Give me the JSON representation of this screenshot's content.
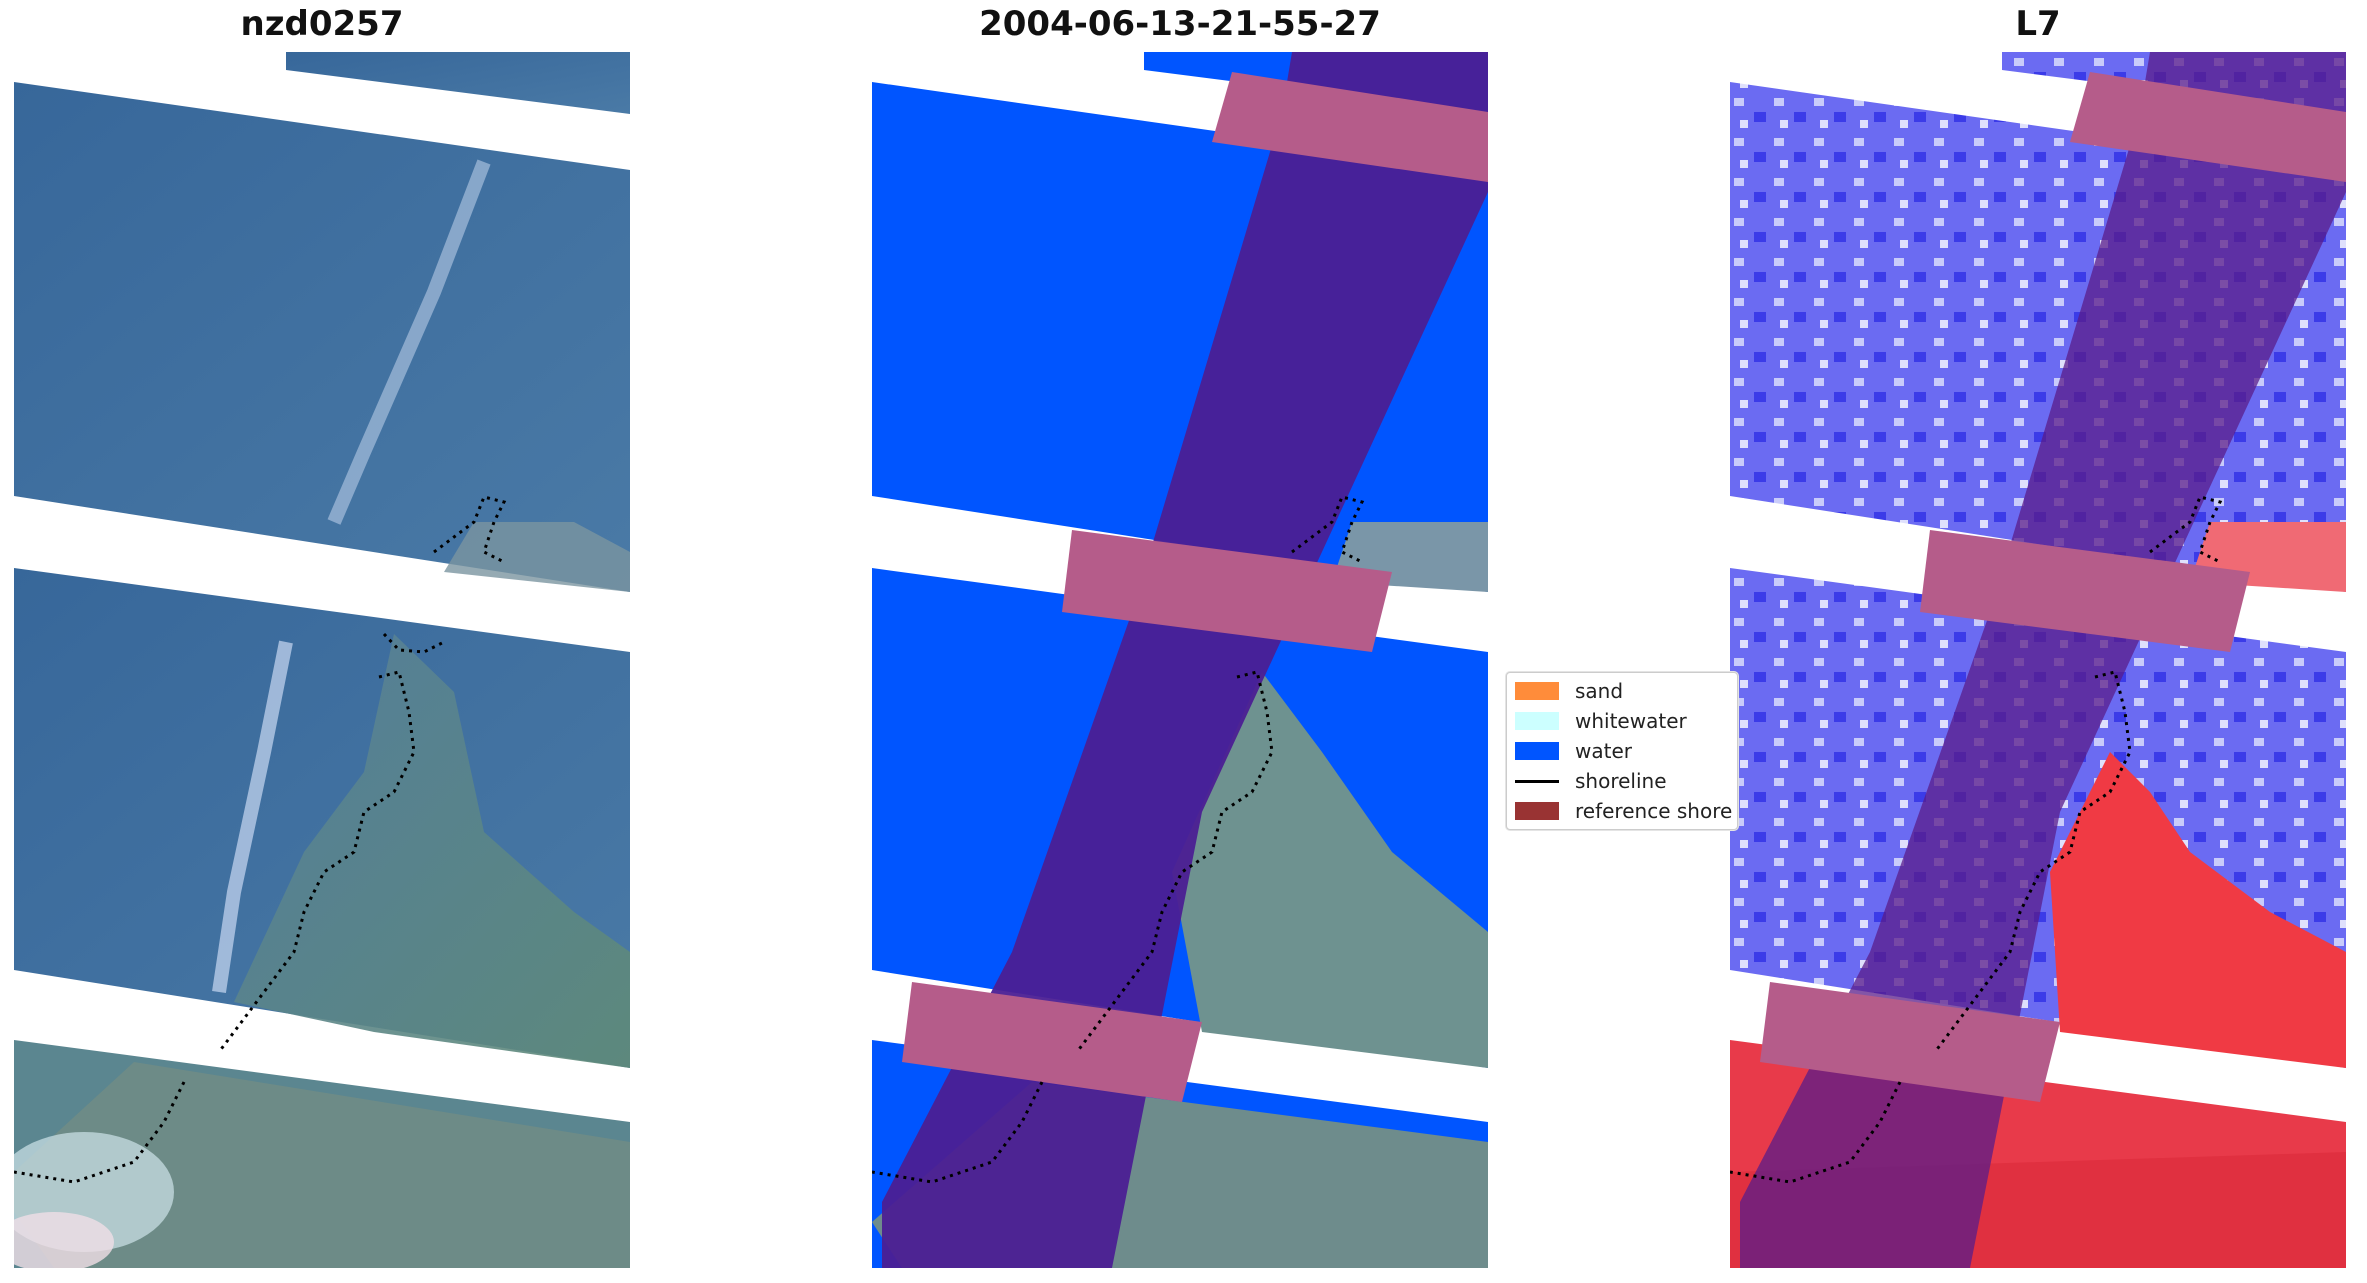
{
  "panels": [
    {
      "title": "nzd0257"
    },
    {
      "title": "2004-06-13-21-55-27"
    },
    {
      "title": "L7"
    }
  ],
  "legend": {
    "items": [
      {
        "label": "sand",
        "color": "#ff8c3a",
        "kind": "patch"
      },
      {
        "label": "whitewater",
        "color": "#ccffff",
        "kind": "patch"
      },
      {
        "label": "water",
        "color": "#0055ff",
        "kind": "patch"
      },
      {
        "label": "shoreline",
        "color": "#000000",
        "kind": "line"
      },
      {
        "label": "reference shore",
        "color": "#993333",
        "kind": "patch"
      }
    ]
  },
  "colors": {
    "sea_blue": "#3f6e9c",
    "land_green": "#5f8375",
    "water_class": "#0055ff",
    "buffer_purple": "#4b1f94",
    "buffer_pink": "#b55c8a",
    "index_blue": "#6b6bf2",
    "index_red": "#f03a44"
  }
}
